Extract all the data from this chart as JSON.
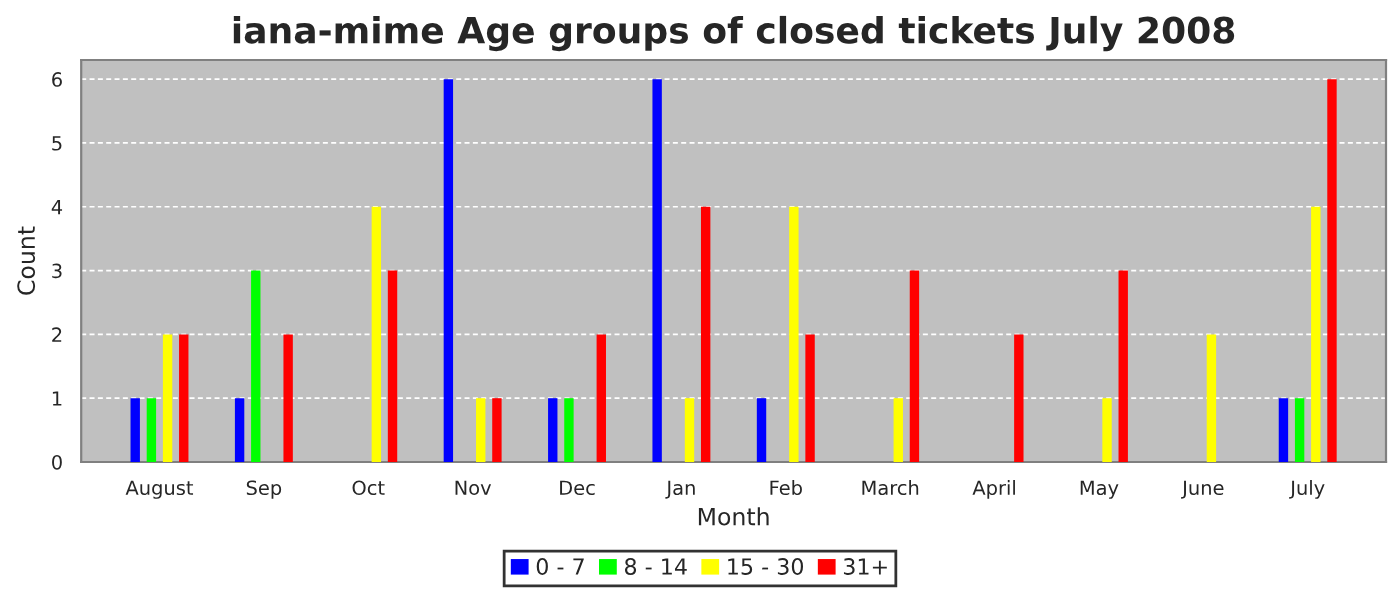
{
  "chart_data": {
    "type": "bar",
    "title": "iana-mime Age groups of closed tickets July 2008",
    "xlabel": "Month",
    "ylabel": "Count",
    "categories": [
      "August",
      "Sep",
      "Oct",
      "Nov",
      "Dec",
      "Jan",
      "Feb",
      "March",
      "April",
      "May",
      "June",
      "July"
    ],
    "series": [
      {
        "name": "0 - 7",
        "color": "#0000ff",
        "values": [
          1,
          1,
          0,
          6,
          1,
          6,
          1,
          0,
          0,
          0,
          0,
          1
        ]
      },
      {
        "name": "8 - 14",
        "color": "#00ff00",
        "values": [
          1,
          3,
          0,
          0,
          1,
          0,
          0,
          0,
          0,
          0,
          0,
          1
        ]
      },
      {
        "name": "15 - 30",
        "color": "#ffff00",
        "values": [
          2,
          0,
          4,
          1,
          0,
          1,
          4,
          1,
          0,
          1,
          2,
          4
        ]
      },
      {
        "name": "31+",
        "color": "#ff0000",
        "values": [
          2,
          2,
          3,
          1,
          2,
          4,
          2,
          3,
          2,
          3,
          0,
          6
        ]
      }
    ],
    "ylim": [
      0,
      6.3
    ],
    "yticks": [
      0,
      1,
      2,
      3,
      4,
      5,
      6
    ],
    "grid": "y",
    "legend": "bottom"
  }
}
